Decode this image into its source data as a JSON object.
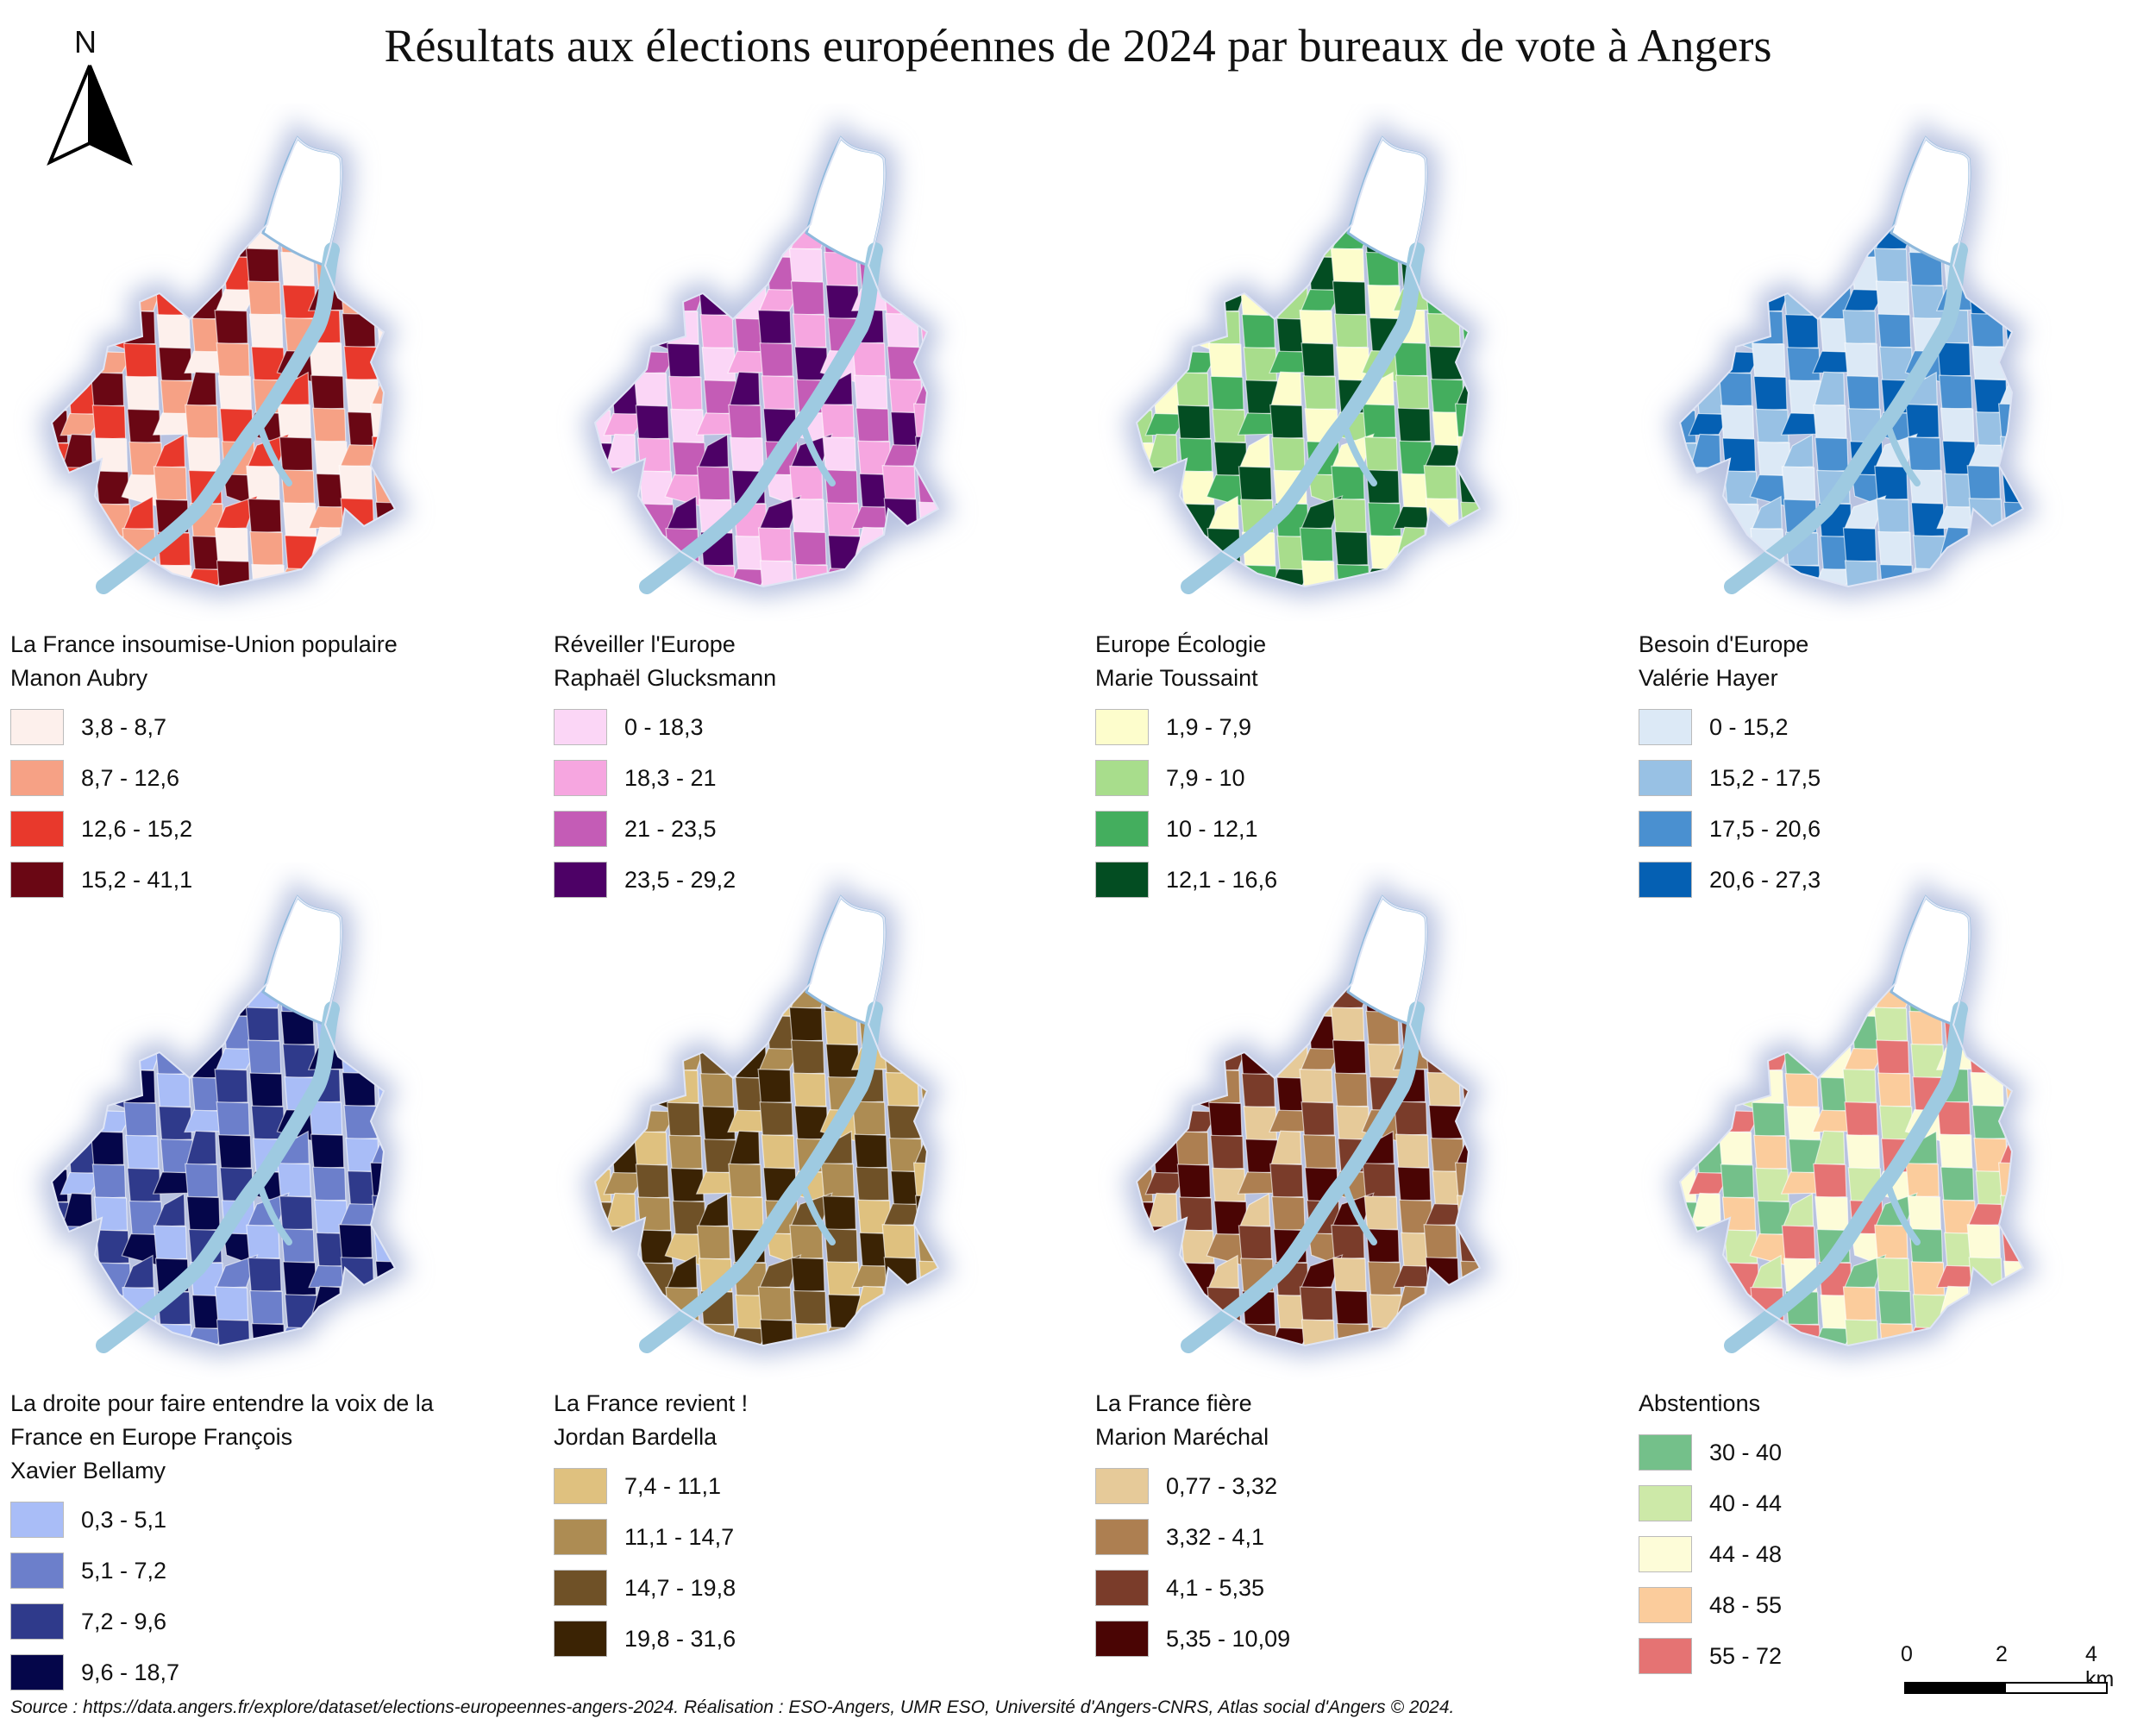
{
  "title": "Résultats aux élections européennes de 2024 par bureaux de vote à Angers",
  "north_label": "N",
  "maps": [
    {
      "legend_title": "La France insoumise-Union populaire\nManon Aubry",
      "classes": [
        {
          "label": "3,8 - 8,7",
          "color": "#fdf0ec"
        },
        {
          "label": "8,7 - 12,6",
          "color": "#f6a185"
        },
        {
          "label": "12,6 - 15,2",
          "color": "#e8392c"
        },
        {
          "label": "15,2 - 41,1",
          "color": "#6a0714"
        }
      ]
    },
    {
      "legend_title": "Réveiller l'Europe\nRaphaël Glucksmann",
      "classes": [
        {
          "label": "0 - 18,3",
          "color": "#fbd6f6"
        },
        {
          "label": "18,3 - 21",
          "color": "#f6a6e0"
        },
        {
          "label": "21 - 23,5",
          "color": "#c45cb6"
        },
        {
          "label": "23,5 - 29,2",
          "color": "#4d0166"
        }
      ]
    },
    {
      "legend_title": "Europe Écologie\nMarie Toussaint",
      "classes": [
        {
          "label": "1,9 - 7,9",
          "color": "#fdfdcc"
        },
        {
          "label": "7,9 - 10",
          "color": "#a8dd8c"
        },
        {
          "label": "10 - 12,1",
          "color": "#44ae5e"
        },
        {
          "label": "12,1 - 16,6",
          "color": "#034d22"
        }
      ]
    },
    {
      "legend_title": "Besoin d'Europe\nValérie Hayer",
      "classes": [
        {
          "label": "0 - 15,2",
          "color": "#dce9f6"
        },
        {
          "label": "15,2 - 17,5",
          "color": "#98c1e4"
        },
        {
          "label": "17,5 - 20,6",
          "color": "#4a90d0"
        },
        {
          "label": "20,6 - 27,3",
          "color": "#0560b3"
        }
      ]
    },
    {
      "legend_title": "La droite pour faire entendre la voix de la\nFrance en Europe François\nXavier Bellamy",
      "classes": [
        {
          "label": "0,3 - 5,1",
          "color": "#a9bdf7"
        },
        {
          "label": "5,1 - 7,2",
          "color": "#6c7fcb"
        },
        {
          "label": "7,2 - 9,6",
          "color": "#2f3a8b"
        },
        {
          "label": "9,6 - 18,7",
          "color": "#05064a"
        }
      ]
    },
    {
      "legend_title": "La France revient !\nJordan Bardella",
      "classes": [
        {
          "label": "7,4 - 11,1",
          "color": "#dfc17f"
        },
        {
          "label": "11,1 - 14,7",
          "color": "#ad8c53"
        },
        {
          "label": "14,7 - 19,8",
          "color": "#6f5127"
        },
        {
          "label": "19,8 - 31,6",
          "color": "#3b2304"
        }
      ]
    },
    {
      "legend_title": "La France fière\nMarion Maréchal",
      "classes": [
        {
          "label": "0,77 - 3,32",
          "color": "#e6ca99"
        },
        {
          "label": "3,32 - 4,1",
          "color": "#ad7f51"
        },
        {
          "label": "4,1 - 5,35",
          "color": "#7a3c2a"
        },
        {
          "label": "5,35 - 10,09",
          "color": "#4a0504"
        }
      ]
    },
    {
      "legend_title": "Abstentions",
      "classes": [
        {
          "label": "30 - 40",
          "color": "#74c08a"
        },
        {
          "label": "40 - 44",
          "color": "#cde9a8"
        },
        {
          "label": "44 - 48",
          "color": "#fdfcd8"
        },
        {
          "label": "48 - 55",
          "color": "#fbcc9c"
        },
        {
          "label": "55 - 72",
          "color": "#e57373"
        }
      ]
    }
  ],
  "scale_bar": {
    "labels": [
      "0",
      "2",
      "4 km"
    ]
  },
  "source": "Source : https://data.angers.fr/explore/dataset/elections-europeennes-angers-2024. Réalisation : ESO-Angers, UMR ESO, Université d'Angers-CNRS, Atlas social d'Angers © 2024."
}
